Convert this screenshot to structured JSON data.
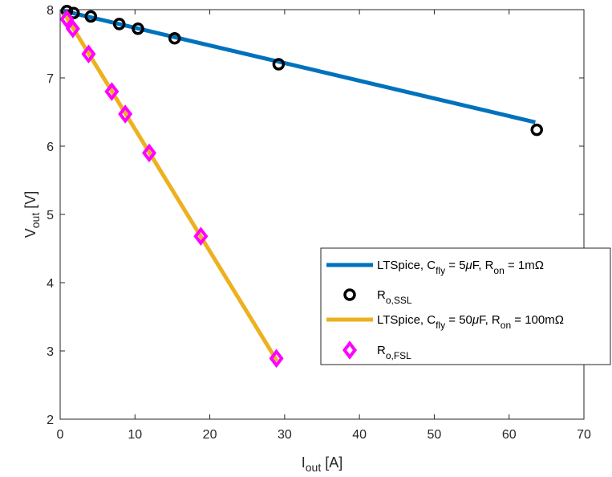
{
  "chart_data": {
    "type": "line",
    "xlabel": {
      "main": "I",
      "sub": "out",
      "unit": " [A]"
    },
    "ylabel": {
      "main": "V",
      "sub": "out",
      "unit": " [V]"
    },
    "xlim": [
      0,
      70
    ],
    "ylim": [
      2,
      8
    ],
    "xticks": [
      0,
      10,
      20,
      30,
      40,
      50,
      60,
      70
    ],
    "yticks": [
      2,
      3,
      4,
      5,
      6,
      7,
      8
    ],
    "grid": false,
    "legend_position": "center-right",
    "colors": {
      "ssl_line": "#0072BD",
      "fsl_line": "#EDB120",
      "ssl_marker": "#000000",
      "fsl_marker": "#FF00FF"
    },
    "series": [
      {
        "name": "LTSpice, C_fly = 5μF, R_on = 1mΩ",
        "style": "line",
        "color_key": "ssl_line",
        "x": [
          0.5,
          63.5
        ],
        "y": [
          7.98,
          6.35
        ]
      },
      {
        "name": "R_o,SSL",
        "style": "circle-markers",
        "color_key": "ssl_marker",
        "x": [
          0.9,
          1.8,
          4.1,
          7.9,
          10.4,
          15.3,
          29.2,
          63.7
        ],
        "y": [
          7.98,
          7.95,
          7.9,
          7.79,
          7.72,
          7.58,
          7.2,
          6.24
        ]
      },
      {
        "name": "LTSpice, C_fly = 50μF, R_on = 100mΩ",
        "style": "line",
        "color_key": "fsl_line",
        "x": [
          0.5,
          29.0
        ],
        "y": [
          7.95,
          2.85
        ]
      },
      {
        "name": "R_o,FSL",
        "style": "diamond-markers",
        "color_key": "fsl_marker",
        "x": [
          0.9,
          1.7,
          3.8,
          6.9,
          8.7,
          11.9,
          18.8,
          28.9
        ],
        "y": [
          7.86,
          7.72,
          7.35,
          6.8,
          6.47,
          5.9,
          4.68,
          2.89
        ]
      }
    ],
    "legend": [
      {
        "kind": "line",
        "color_key": "ssl_line",
        "parts": [
          "LTSpice, C",
          "fly",
          " = 5",
          "μ",
          "F, R",
          "on",
          " = 1mΩ"
        ]
      },
      {
        "kind": "circle",
        "color_key": "ssl_marker",
        "parts": [
          "R",
          "o,SSL"
        ]
      },
      {
        "kind": "line",
        "color_key": "fsl_line",
        "parts": [
          "LTSpice, C",
          "fly",
          " = 50",
          "μ",
          "F, R",
          "on",
          " = 100mΩ"
        ]
      },
      {
        "kind": "diamond",
        "color_key": "fsl_marker",
        "parts": [
          "R",
          "o,FSL"
        ]
      }
    ]
  }
}
